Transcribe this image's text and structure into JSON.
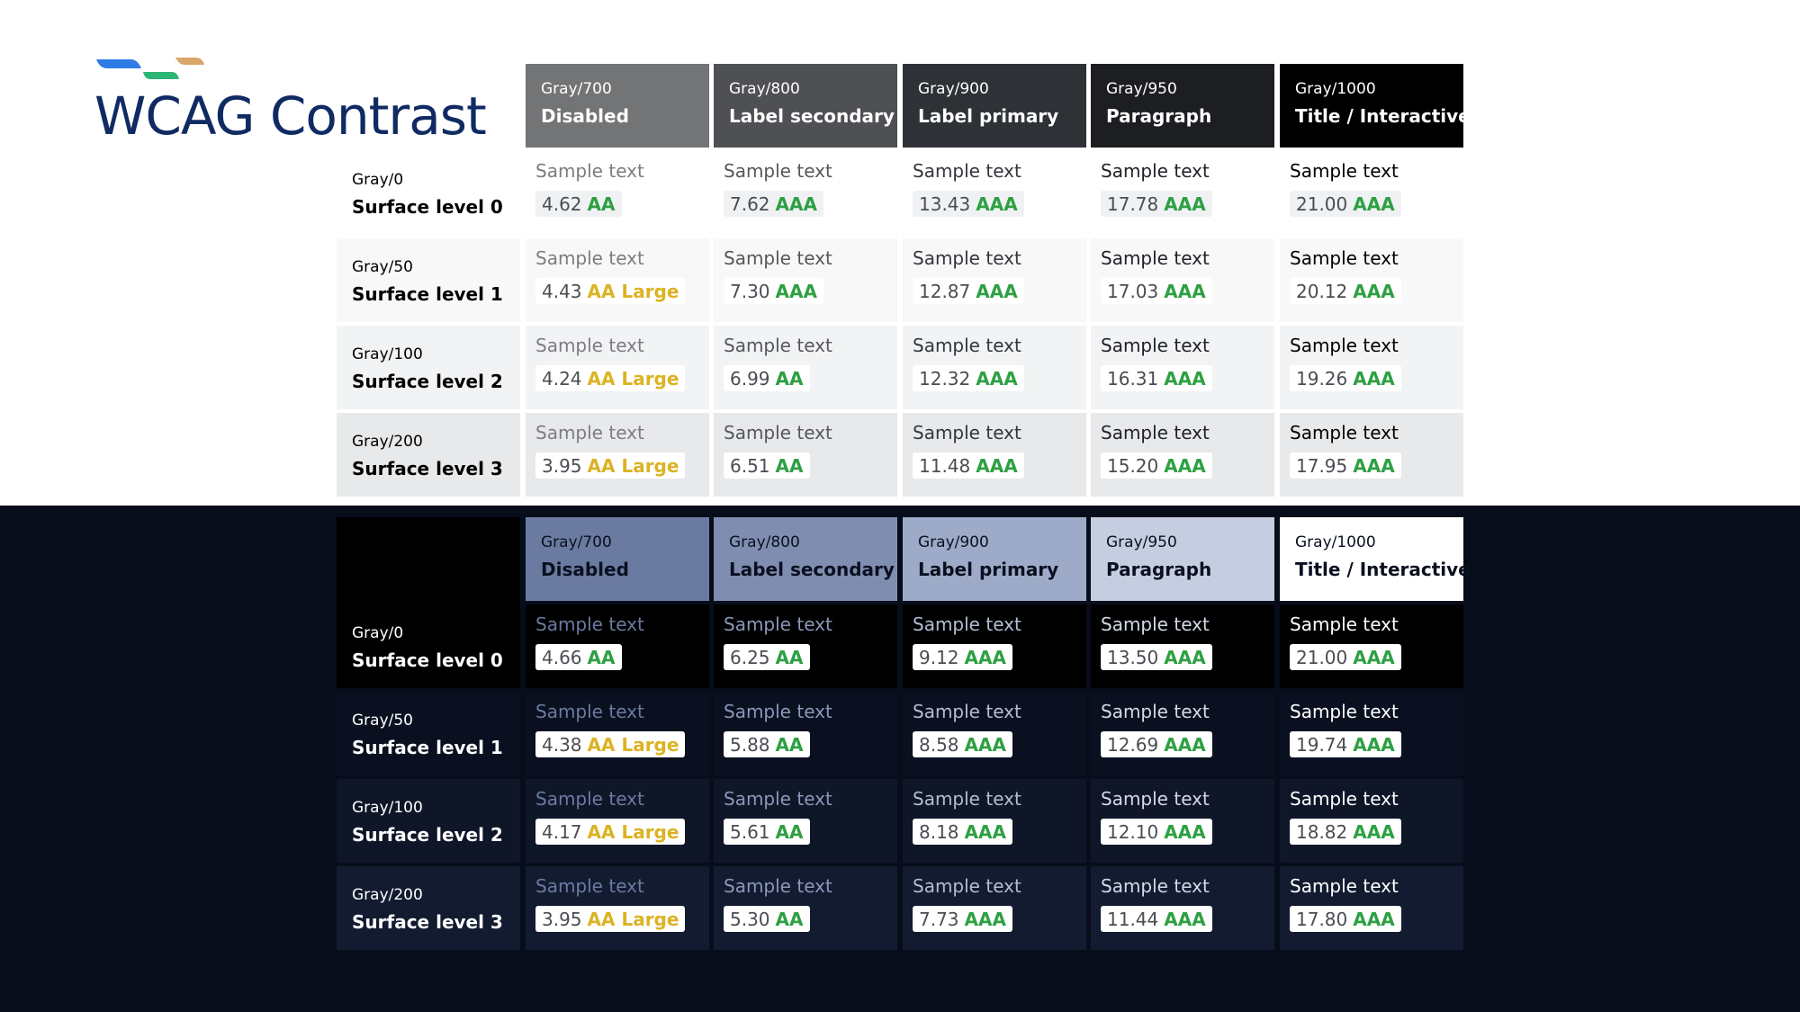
{
  "title": "WCAG Contrast",
  "colors": {
    "title": "#102a63",
    "logo": [
      "#2f7be6",
      "#2bb673",
      "#d9a66b"
    ],
    "rating_pass": "#2ea043",
    "rating_large": "#dbb324",
    "dark_background": "#070d1b"
  },
  "light": {
    "columns": [
      {
        "code": "Gray/700",
        "label": "Disabled",
        "bg": "#737476",
        "color": "#ffffff",
        "text_color": "#7c7d80"
      },
      {
        "code": "Gray/800",
        "label": "Label secondary",
        "bg": "#4e5054",
        "color": "#ffffff",
        "text_color": "#55575b"
      },
      {
        "code": "Gray/900",
        "label": "Label primary",
        "bg": "#2e3136",
        "color": "#ffffff",
        "text_color": "#33363b"
      },
      {
        "code": "Gray/950",
        "label": "Paragraph",
        "bg": "#1c1e22",
        "color": "#ffffff",
        "text_color": "#1f2126"
      },
      {
        "code": "Gray/1000",
        "label": "Title / Interactive",
        "bg": "#000000",
        "color": "#ffffff",
        "text_color": "#000000"
      }
    ],
    "rows": [
      {
        "code": "Gray/0",
        "label": "Surface level 0",
        "bg": "#ffffff",
        "label_color": "#000000",
        "badge_bg": "#f0f1f3",
        "cells": [
          {
            "sample": "Sample text",
            "ratio": "4.62",
            "rating": "AA",
            "level": "pass"
          },
          {
            "sample": "Sample text",
            "ratio": "7.62",
            "rating": "AAA",
            "level": "pass"
          },
          {
            "sample": "Sample text",
            "ratio": "13.43",
            "rating": "AAA",
            "level": "pass"
          },
          {
            "sample": "Sample text",
            "ratio": "17.78",
            "rating": "AAA",
            "level": "pass"
          },
          {
            "sample": "Sample text",
            "ratio": "21.00",
            "rating": "AAA",
            "level": "pass"
          }
        ]
      },
      {
        "code": "Gray/50",
        "label": "Surface level 1",
        "bg": "#f8f8f9",
        "label_color": "#000000",
        "badge_bg": "#ffffff",
        "cells": [
          {
            "sample": "Sample text",
            "ratio": "4.43",
            "rating": "AA Large",
            "level": "large"
          },
          {
            "sample": "Sample text",
            "ratio": "7.30",
            "rating": "AAA",
            "level": "pass"
          },
          {
            "sample": "Sample text",
            "ratio": "12.87",
            "rating": "AAA",
            "level": "pass"
          },
          {
            "sample": "Sample text",
            "ratio": "17.03",
            "rating": "AAA",
            "level": "pass"
          },
          {
            "sample": "Sample text",
            "ratio": "20.12",
            "rating": "AAA",
            "level": "pass"
          }
        ]
      },
      {
        "code": "Gray/100",
        "label": "Surface level 2",
        "bg": "#f2f3f4",
        "label_color": "#000000",
        "badge_bg": "#ffffff",
        "cells": [
          {
            "sample": "Sample text",
            "ratio": "4.24",
            "rating": "AA Large",
            "level": "large"
          },
          {
            "sample": "Sample text",
            "ratio": "6.99",
            "rating": "AA",
            "level": "pass"
          },
          {
            "sample": "Sample text",
            "ratio": "12.32",
            "rating": "AAA",
            "level": "pass"
          },
          {
            "sample": "Sample text",
            "ratio": "16.31",
            "rating": "AAA",
            "level": "pass"
          },
          {
            "sample": "Sample text",
            "ratio": "19.26",
            "rating": "AAA",
            "level": "pass"
          }
        ]
      },
      {
        "code": "Gray/200",
        "label": "Surface level 3",
        "bg": "#e8e9eb",
        "label_color": "#000000",
        "badge_bg": "#ffffff",
        "cells": [
          {
            "sample": "Sample text",
            "ratio": "3.95",
            "rating": "AA Large",
            "level": "large"
          },
          {
            "sample": "Sample text",
            "ratio": "6.51",
            "rating": "AA",
            "level": "pass"
          },
          {
            "sample": "Sample text",
            "ratio": "11.48",
            "rating": "AAA",
            "level": "pass"
          },
          {
            "sample": "Sample text",
            "ratio": "15.20",
            "rating": "AAA",
            "level": "pass"
          },
          {
            "sample": "Sample text",
            "ratio": "17.95",
            "rating": "AAA",
            "level": "pass"
          }
        ]
      }
    ]
  },
  "dark": {
    "columns": [
      {
        "code": "Gray/700",
        "label": "Disabled",
        "bg": "#6b7aa0",
        "color": "#0a1020",
        "text_color": "#6b7aa0"
      },
      {
        "code": "Gray/800",
        "label": "Label secondary",
        "bg": "#7f8db0",
        "color": "#0a1020",
        "text_color": "#8a97b8"
      },
      {
        "code": "Gray/900",
        "label": "Label primary",
        "bg": "#9eabc8",
        "color": "#0a1020",
        "text_color": "#b3bdd3"
      },
      {
        "code": "Gray/950",
        "label": "Paragraph",
        "bg": "#c5cde0",
        "color": "#0a1020",
        "text_color": "#d3d9e6"
      },
      {
        "code": "Gray/1000",
        "label": "Title / Interactive",
        "bg": "#ffffff",
        "color": "#0a1020",
        "text_color": "#ffffff"
      }
    ],
    "rows": [
      {
        "code": "Gray/0",
        "label": "Surface level 0",
        "bg": "#000000",
        "label_color": "#ffffff",
        "badge_bg": "#ffffff",
        "cells": [
          {
            "sample": "Sample text",
            "ratio": "4.66",
            "rating": "AA",
            "level": "pass"
          },
          {
            "sample": "Sample text",
            "ratio": "6.25",
            "rating": "AA",
            "level": "pass"
          },
          {
            "sample": "Sample text",
            "ratio": "9.12",
            "rating": "AAA",
            "level": "pass"
          },
          {
            "sample": "Sample text",
            "ratio": "13.50",
            "rating": "AAA",
            "level": "pass"
          },
          {
            "sample": "Sample text",
            "ratio": "21.00",
            "rating": "AAA",
            "level": "pass"
          }
        ]
      },
      {
        "code": "Gray/50",
        "label": "Surface level 1",
        "bg": "#0a1020",
        "label_color": "#ffffff",
        "badge_bg": "#ffffff",
        "cells": [
          {
            "sample": "Sample text",
            "ratio": "4.38",
            "rating": "AA Large",
            "level": "large"
          },
          {
            "sample": "Sample text",
            "ratio": "5.88",
            "rating": "AA",
            "level": "pass"
          },
          {
            "sample": "Sample text",
            "ratio": "8.58",
            "rating": "AAA",
            "level": "pass"
          },
          {
            "sample": "Sample text",
            "ratio": "12.69",
            "rating": "AAA",
            "level": "pass"
          },
          {
            "sample": "Sample text",
            "ratio": "19.74",
            "rating": "AAA",
            "level": "pass"
          }
        ]
      },
      {
        "code": "Gray/100",
        "label": "Surface level 2",
        "bg": "#0e1628",
        "label_color": "#ffffff",
        "badge_bg": "#ffffff",
        "cells": [
          {
            "sample": "Sample text",
            "ratio": "4.17",
            "rating": "AA Large",
            "level": "large"
          },
          {
            "sample": "Sample text",
            "ratio": "5.61",
            "rating": "AA",
            "level": "pass"
          },
          {
            "sample": "Sample text",
            "ratio": "8.18",
            "rating": "AAA",
            "level": "pass"
          },
          {
            "sample": "Sample text",
            "ratio": "12.10",
            "rating": "AAA",
            "level": "pass"
          },
          {
            "sample": "Sample text",
            "ratio": "18.82",
            "rating": "AAA",
            "level": "pass"
          }
        ]
      },
      {
        "code": "Gray/200",
        "label": "Surface level 3",
        "bg": "#121b30",
        "label_color": "#ffffff",
        "badge_bg": "#ffffff",
        "cells": [
          {
            "sample": "Sample text",
            "ratio": "3.95",
            "rating": "AA Large",
            "level": "large"
          },
          {
            "sample": "Sample text",
            "ratio": "5.30",
            "rating": "AA",
            "level": "pass"
          },
          {
            "sample": "Sample text",
            "ratio": "7.73",
            "rating": "AAA",
            "level": "pass"
          },
          {
            "sample": "Sample text",
            "ratio": "11.44",
            "rating": "AAA",
            "level": "pass"
          },
          {
            "sample": "Sample text",
            "ratio": "17.80",
            "rating": "AAA",
            "level": "pass"
          }
        ]
      }
    ]
  }
}
